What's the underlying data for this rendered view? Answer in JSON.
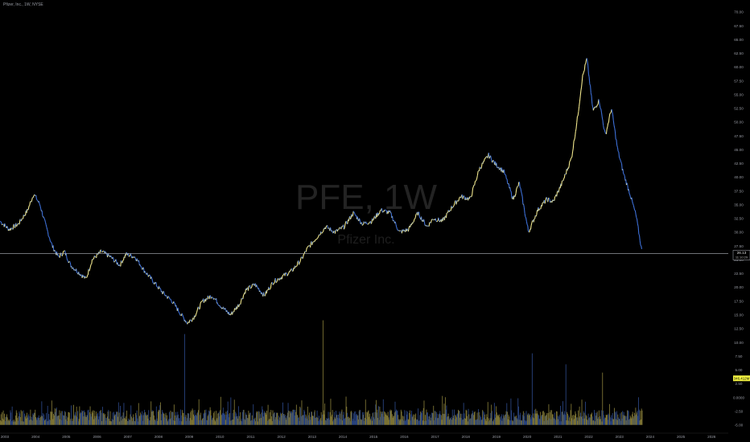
{
  "header": {
    "symbol_title": "Pfizer, Inc., 1W, NYSE"
  },
  "watermark": {
    "symbol": "PFE, 1W",
    "name": "Pfizer Inc."
  },
  "colors": {
    "background": "#000000",
    "up": "#f0e68c",
    "down": "#3d6fd6",
    "axis_text": "#9a9da6",
    "price_line": "#b2b5be",
    "volume_tag_bg": "#f5f542"
  },
  "price_axis": {
    "ticks": [
      "70.00",
      "67.50",
      "65.00",
      "62.50",
      "60.00",
      "57.50",
      "55.00",
      "52.50",
      "50.00",
      "47.50",
      "45.00",
      "42.50",
      "40.00",
      "37.50",
      "35.00",
      "32.50",
      "30.00",
      "27.50",
      "25.00",
      "22.50",
      "20.00",
      "17.50",
      "15.00",
      "12.50",
      "10.00",
      "7.50",
      "5.00",
      "2.50",
      "0.0000",
      "-2.50",
      "-5.00"
    ],
    "last_price": "26.13",
    "last_price_sub": "11:10:29",
    "volume_tag": "346.412M"
  },
  "time_axis": {
    "ticks": [
      "2003",
      "2004",
      "2005",
      "2006",
      "2007",
      "2008",
      "2009",
      "2010",
      "2011",
      "2012",
      "2013",
      "2014",
      "2015",
      "2016",
      "2017",
      "2018",
      "2019",
      "2020",
      "2021",
      "2022",
      "2023",
      "2024",
      "2025",
      "2026"
    ]
  },
  "chart_data": {
    "type": "line",
    "title": "Pfizer, Inc., 1W, NYSE",
    "xlabel": "",
    "ylabel": "",
    "xlim": [
      2003.0,
      2026.7
    ],
    "ylim": [
      -6.5,
      71.0
    ],
    "series": [
      {
        "name": "PFE",
        "x": [
          2003.0,
          2003.3,
          2003.6,
          2003.9,
          2004.1,
          2004.3,
          2004.5,
          2004.7,
          2004.9,
          2005.1,
          2005.3,
          2005.5,
          2005.8,
          2006.0,
          2006.3,
          2006.6,
          2006.9,
          2007.1,
          2007.4,
          2007.7,
          2008.0,
          2008.3,
          2008.6,
          2008.9,
          2009.1,
          2009.3,
          2009.6,
          2009.9,
          2010.2,
          2010.5,
          2010.8,
          2011.0,
          2011.3,
          2011.6,
          2011.9,
          2012.2,
          2012.5,
          2012.8,
          2013.0,
          2013.3,
          2013.6,
          2013.9,
          2014.2,
          2014.5,
          2014.8,
          2015.1,
          2015.4,
          2015.7,
          2016.0,
          2016.3,
          2016.6,
          2016.9,
          2017.1,
          2017.4,
          2017.7,
          2018.0,
          2018.3,
          2018.6,
          2018.9,
          2019.1,
          2019.4,
          2019.7,
          2019.9,
          2020.2,
          2020.5,
          2020.8,
          2021.0,
          2021.3,
          2021.6,
          2021.8,
          2021.95,
          2022.1,
          2022.3,
          2022.5,
          2022.7,
          2022.9,
          2023.1,
          2023.3,
          2023.5,
          2023.7,
          2023.9
        ],
        "y": [
          32.0,
          30.5,
          31.5,
          34.0,
          37.0,
          35.0,
          31.0,
          27.5,
          25.5,
          26.5,
          24.0,
          23.0,
          21.5,
          25.0,
          26.5,
          25.5,
          24.0,
          26.0,
          25.5,
          23.0,
          21.0,
          19.0,
          17.5,
          15.0,
          13.5,
          14.5,
          17.5,
          18.5,
          16.5,
          15.0,
          17.0,
          19.5,
          20.5,
          18.5,
          21.0,
          22.0,
          23.0,
          25.0,
          27.0,
          29.0,
          31.0,
          30.0,
          31.0,
          33.5,
          31.5,
          32.0,
          34.0,
          33.5,
          30.0,
          30.5,
          33.5,
          31.0,
          32.5,
          32.0,
          34.5,
          36.5,
          36.0,
          41.5,
          44.0,
          42.5,
          41.0,
          36.0,
          39.0,
          30.0,
          34.0,
          36.0,
          35.5,
          39.0,
          43.5,
          51.0,
          58.0,
          61.5,
          52.0,
          54.0,
          47.5,
          52.5,
          45.0,
          40.5,
          37.0,
          33.0,
          26.13
        ]
      },
      {
        "name": "Volume (M)",
        "note": "weekly volume, drawn as bottom-pane bars",
        "peaks": [
          [
            2009.0,
            11.5
          ],
          [
            2013.5,
            14.0
          ],
          [
            2020.3,
            8.0
          ],
          [
            2021.4,
            6.0
          ],
          [
            2022.6,
            4.5
          ],
          [
            2023.9,
            3.46
          ]
        ]
      }
    ],
    "grid": false,
    "legend": "none"
  }
}
